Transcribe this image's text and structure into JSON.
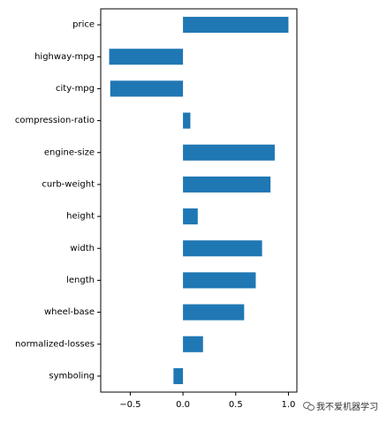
{
  "chart_data": {
    "type": "bar",
    "orientation": "horizontal",
    "categories": [
      "price",
      "highway-mpg",
      "city-mpg",
      "compression-ratio",
      "engine-size",
      "curb-weight",
      "height",
      "width",
      "length",
      "wheel-base",
      "normalized-losses",
      "symboling"
    ],
    "values": [
      1.0,
      -0.7,
      -0.69,
      0.07,
      0.87,
      0.83,
      0.14,
      0.75,
      0.69,
      0.58,
      0.19,
      -0.09
    ],
    "xlim": [
      -0.78,
      1.08
    ],
    "xticks": [
      -0.5,
      0.0,
      0.5,
      1.0
    ],
    "xtick_labels": [
      "−0.5",
      "0.0",
      "0.5",
      "1.0"
    ],
    "grid": false,
    "bar_color": "#1f77b4"
  },
  "watermark": {
    "text": "我不爱机器学习",
    "icon": "wechat-icon"
  }
}
